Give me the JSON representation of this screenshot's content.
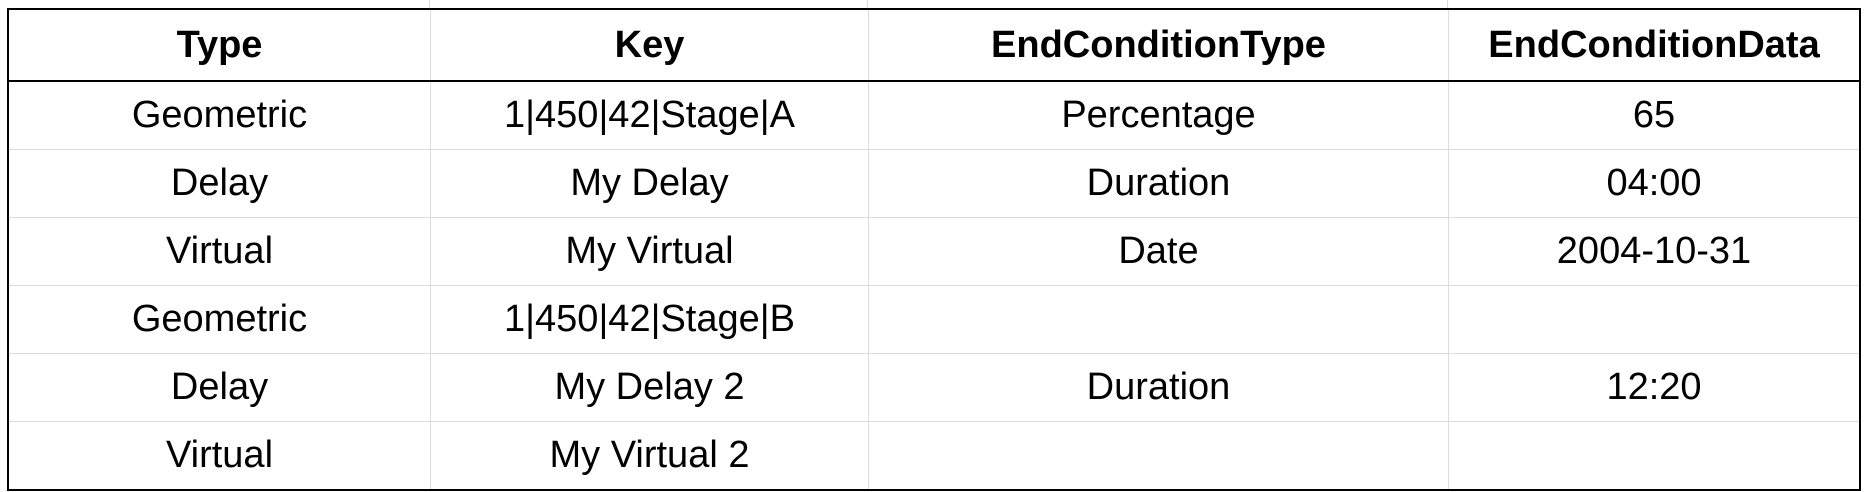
{
  "table": {
    "headers": [
      "Type",
      "Key",
      "EndConditionType",
      "EndConditionData"
    ],
    "rows": [
      [
        "Geometric",
        "1|450|42|Stage|A",
        "Percentage",
        "65"
      ],
      [
        "Delay",
        "My Delay",
        "Duration",
        "04:00"
      ],
      [
        "Virtual",
        "My Virtual",
        "Date",
        "2004-10-31"
      ],
      [
        "Geometric",
        "1|450|42|Stage|B",
        "",
        ""
      ],
      [
        "Delay",
        "My Delay 2",
        "Duration",
        "12:20"
      ],
      [
        "Virtual",
        "My Virtual 2",
        "",
        ""
      ]
    ]
  }
}
